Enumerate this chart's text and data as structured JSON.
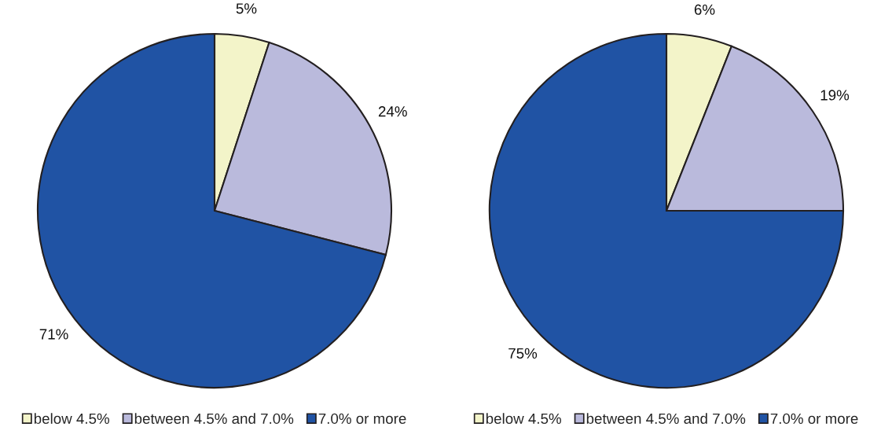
{
  "chart_data": [
    {
      "type": "pie",
      "categories": [
        "below 4.5%",
        "between 4.5% and 7.0%",
        "7.0% or more"
      ],
      "values": [
        5,
        24,
        71
      ],
      "colors": [
        "#f3f4c9",
        "#babadc",
        "#2053a4"
      ],
      "value_labels": [
        "5%",
        "24%",
        "71%"
      ],
      "legend": "bottom"
    },
    {
      "type": "pie",
      "categories": [
        "below 4.5%",
        "between 4.5% and 7.0%",
        "7.0% or more"
      ],
      "values": [
        6,
        19,
        75
      ],
      "colors": [
        "#f3f4c9",
        "#babadc",
        "#2053a4"
      ],
      "value_labels": [
        "6%",
        "19%",
        "75%"
      ],
      "legend": "bottom"
    }
  ]
}
